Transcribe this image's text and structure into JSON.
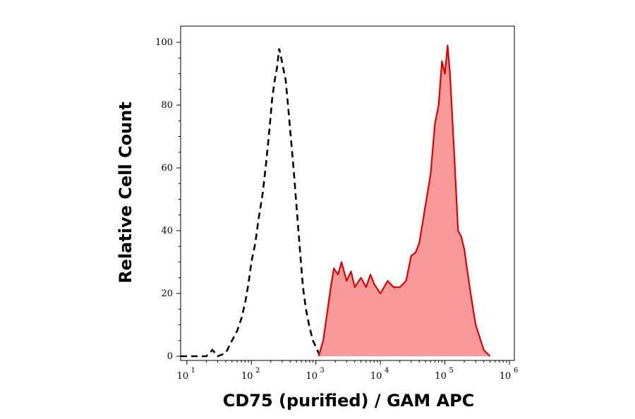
{
  "chart_data": {
    "type": "area",
    "title": "",
    "xlabel": "CD75 (purified) / GAM APC",
    "ylabel": "Relative Cell Count",
    "x_scale": "log",
    "xlim": [
      10,
      1000000
    ],
    "ylim": [
      0,
      100
    ],
    "grid": false,
    "legend": "none",
    "x_ticks": [
      {
        "base": "10",
        "exp": "1",
        "value": 10
      },
      {
        "base": "10",
        "exp": "2",
        "value": 100
      },
      {
        "base": "10",
        "exp": "3",
        "value": 1000
      },
      {
        "base": "10",
        "exp": "4",
        "value": 10000
      },
      {
        "base": "10",
        "exp": "5",
        "value": 100000
      },
      {
        "base": "10",
        "exp": "6",
        "value": 1000000
      }
    ],
    "y_ticks": [
      "0",
      "20",
      "40",
      "60",
      "80",
      "100"
    ],
    "series": [
      {
        "style": "dashed",
        "color": "#000000",
        "points": [
          [
            8,
            0
          ],
          [
            12,
            0
          ],
          [
            20,
            0
          ],
          [
            25,
            2
          ],
          [
            30,
            0
          ],
          [
            40,
            1
          ],
          [
            50,
            5
          ],
          [
            60,
            8
          ],
          [
            70,
            12
          ],
          [
            80,
            17
          ],
          [
            90,
            23
          ],
          [
            100,
            30
          ],
          [
            115,
            36
          ],
          [
            130,
            44
          ],
          [
            150,
            52
          ],
          [
            170,
            62
          ],
          [
            190,
            72
          ],
          [
            210,
            82
          ],
          [
            230,
            88
          ],
          [
            250,
            92
          ],
          [
            270,
            98
          ],
          [
            290,
            95
          ],
          [
            310,
            92
          ],
          [
            340,
            88
          ],
          [
            370,
            80
          ],
          [
            400,
            72
          ],
          [
            450,
            60
          ],
          [
            500,
            48
          ],
          [
            560,
            35
          ],
          [
            630,
            22
          ],
          [
            700,
            15
          ],
          [
            800,
            9
          ],
          [
            900,
            5
          ],
          [
            1000,
            3
          ],
          [
            1100,
            1
          ],
          [
            1200,
            0
          ]
        ]
      },
      {
        "style": "filled",
        "color": "#e00000",
        "fill": "#f99a9a",
        "points": [
          [
            1100,
            0
          ],
          [
            1300,
            5
          ],
          [
            1500,
            14
          ],
          [
            1700,
            22
          ],
          [
            1900,
            28
          ],
          [
            2200,
            26
          ],
          [
            2500,
            30
          ],
          [
            3000,
            24
          ],
          [
            3500,
            27
          ],
          [
            4000,
            22
          ],
          [
            5000,
            25
          ],
          [
            6000,
            22
          ],
          [
            7000,
            26
          ],
          [
            8000,
            23
          ],
          [
            10000,
            20
          ],
          [
            13000,
            24
          ],
          [
            16000,
            22
          ],
          [
            20000,
            22
          ],
          [
            25000,
            24
          ],
          [
            30000,
            32
          ],
          [
            35000,
            33
          ],
          [
            40000,
            36
          ],
          [
            50000,
            48
          ],
          [
            60000,
            58
          ],
          [
            70000,
            74
          ],
          [
            80000,
            80
          ],
          [
            90000,
            94
          ],
          [
            100000,
            90
          ],
          [
            110000,
            99
          ],
          [
            120000,
            90
          ],
          [
            140000,
            64
          ],
          [
            160000,
            40
          ],
          [
            180000,
            38
          ],
          [
            200000,
            34
          ],
          [
            250000,
            20
          ],
          [
            300000,
            10
          ],
          [
            400000,
            2
          ],
          [
            500000,
            0
          ]
        ]
      }
    ]
  }
}
